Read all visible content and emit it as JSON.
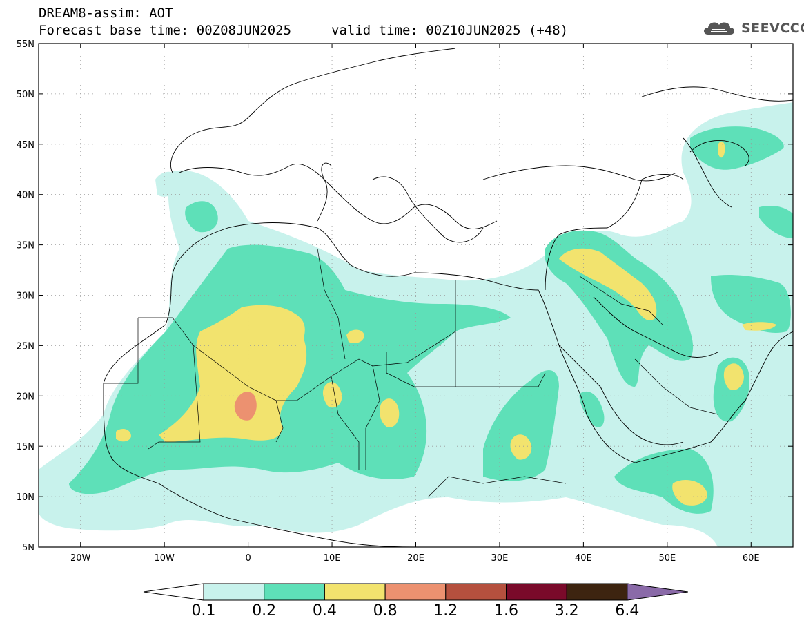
{
  "title": {
    "line1": "DREAM8-assim: AOT",
    "base": "Forecast base time: 00Z08JUN2025",
    "valid": "valid time: 00Z10JUN2025 (+48)"
  },
  "logo": {
    "text": "SEEVCCC"
  },
  "map": {
    "lon_range": [
      -25,
      65
    ],
    "lat_range": [
      5,
      55
    ],
    "lon_ticks": [
      {
        "value": -20,
        "label": "20W"
      },
      {
        "value": -10,
        "label": "10W"
      },
      {
        "value": 0,
        "label": "0"
      },
      {
        "value": 10,
        "label": "10E"
      },
      {
        "value": 20,
        "label": "20E"
      },
      {
        "value": 30,
        "label": "30E"
      },
      {
        "value": 40,
        "label": "40E"
      },
      {
        "value": 50,
        "label": "50E"
      },
      {
        "value": 60,
        "label": "60E"
      }
    ],
    "lat_ticks": [
      {
        "value": 5,
        "label": "5N"
      },
      {
        "value": 10,
        "label": "10N"
      },
      {
        "value": 15,
        "label": "15N"
      },
      {
        "value": 20,
        "label": "20N"
      },
      {
        "value": 25,
        "label": "25N"
      },
      {
        "value": 30,
        "label": "30N"
      },
      {
        "value": 35,
        "label": "35N"
      },
      {
        "value": 40,
        "label": "40N"
      },
      {
        "value": 45,
        "label": "45N"
      },
      {
        "value": 50,
        "label": "50N"
      },
      {
        "value": 55,
        "label": "55N"
      }
    ],
    "grid": true
  },
  "colorbar": {
    "levels": [
      "0.1",
      "0.2",
      "0.4",
      "0.8",
      "1.2",
      "1.6",
      "3.2",
      "6.4"
    ],
    "colors": [
      "#c8f2ec",
      "#5ee0b8",
      "#f2e36e",
      "#ec9170",
      "#b5503e",
      "#7a0a2a",
      "#3d2410",
      "#8a6aa8"
    ],
    "extend": "both",
    "under_color": "#ffffff"
  }
}
